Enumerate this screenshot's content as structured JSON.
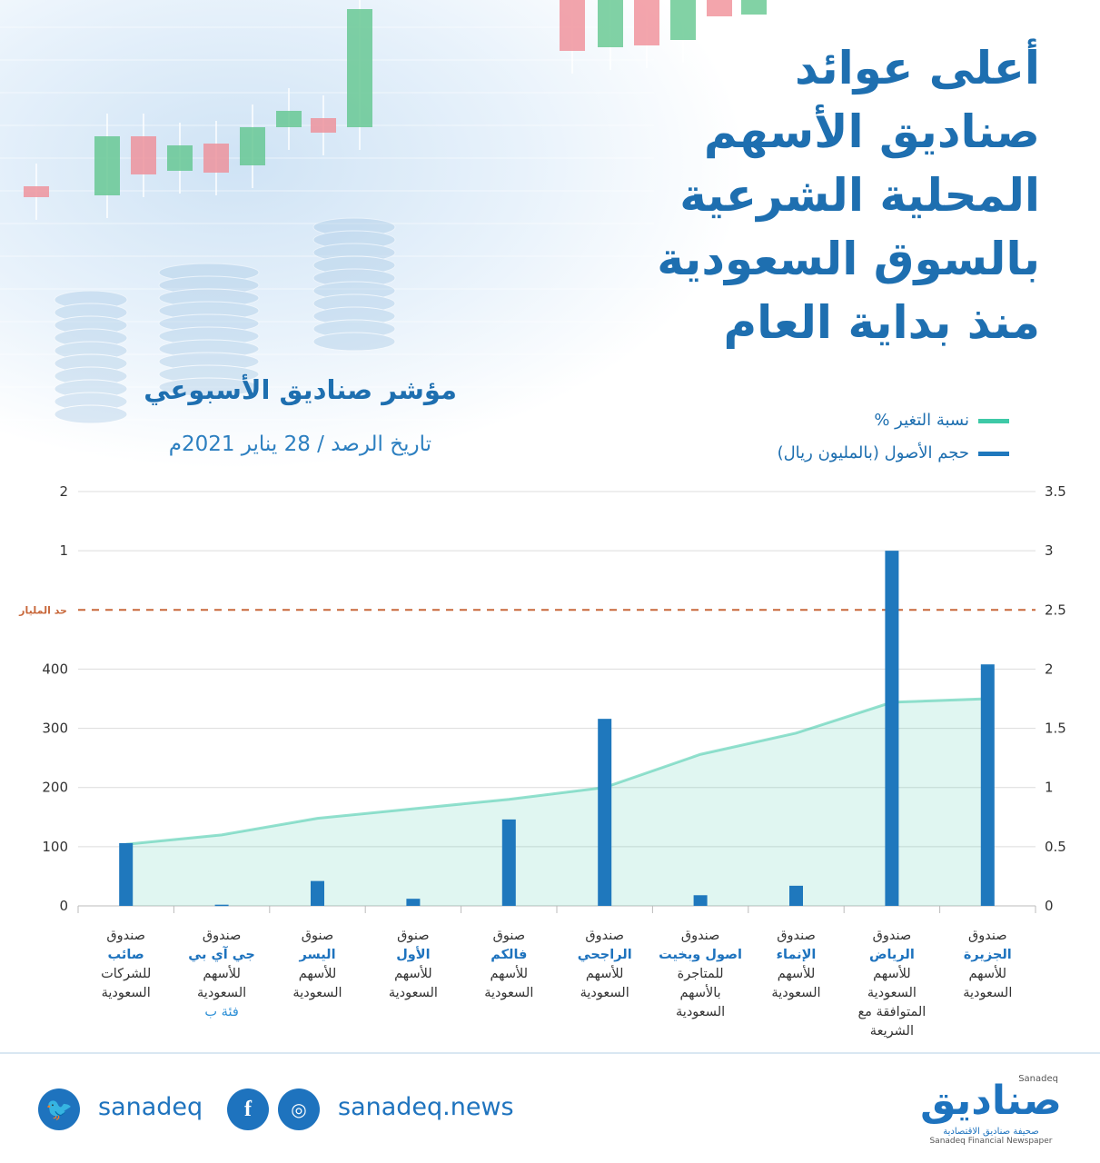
{
  "header": {
    "title_lines": [
      "أعلى عوائد",
      "صناديق الأسهم",
      "المحلية الشرعية",
      "بالسوق السعودية",
      "منذ بداية العام"
    ],
    "chart_title": "مؤشر صناديق الأسبوعي",
    "chart_date": "تاريخ الرصد / 28 يناير 2021م"
  },
  "legend": {
    "line_label": "نسبة التغير %",
    "bar_label": "حجم الأصول (بالمليون ريال)",
    "line_color": "#3ec9a7",
    "bar_color": "#1f78bd"
  },
  "chart_data": {
    "type": "bar",
    "left_axis_ticks": [
      "0",
      "100",
      "200",
      "300",
      "400",
      "",
      "1",
      "2"
    ],
    "right_axis_ticks": [
      "0",
      "0.5",
      "1",
      "1.5",
      "2",
      "2.5",
      "3",
      "3.5"
    ],
    "reference_label": "حد المليار",
    "categories": [
      {
        "prefix": "صندوق",
        "name": "صائب",
        "suffix": [
          "للشركات",
          "السعودية"
        ]
      },
      {
        "prefix": "صندوق",
        "name": "جي آي بي",
        "suffix": [
          "للأسهم",
          "السعودية"
        ],
        "extra": "فئة ب"
      },
      {
        "prefix": "صنوق",
        "name": "اليسر",
        "suffix": [
          "للأسهم",
          "السعودية"
        ]
      },
      {
        "prefix": "صنوق",
        "name": "الأول",
        "suffix": [
          "للأسهم",
          "السعودية"
        ]
      },
      {
        "prefix": "صنوق",
        "name": "فالكم",
        "suffix": [
          "للأسهم",
          "السعودية"
        ]
      },
      {
        "prefix": "صندوق",
        "name": "الراجحي",
        "suffix": [
          "للأسهم",
          "السعودية"
        ]
      },
      {
        "prefix": "صندوق",
        "name": "اصول وبخيت",
        "suffix": [
          "للمتاجرة",
          "بالأسهم",
          "السعودية"
        ]
      },
      {
        "prefix": "صندوق",
        "name": "الإنماء",
        "suffix": [
          "للأسهم",
          "السعودية"
        ]
      },
      {
        "prefix": "صندوق",
        "name": "الرياض",
        "suffix": [
          "للأسهم",
          "السعودية",
          "المتوافقة مع",
          "الشريعة"
        ]
      },
      {
        "prefix": "صندوق",
        "name": "الجزيرة",
        "suffix": [
          "للأسهم",
          "السعودية"
        ]
      }
    ],
    "series": [
      {
        "name": "حجم الأصول (بالمليون ريال)",
        "type": "bar",
        "axis_scale": [
          0,
          3.5
        ],
        "values": [
          0.53,
          0.01,
          0.21,
          0.06,
          0.73,
          1.58,
          0.09,
          0.17,
          3.0,
          2.04
        ]
      },
      {
        "name": "نسبة التغير %",
        "type": "area",
        "axis_scale": [
          0,
          3.5
        ],
        "values": [
          0.52,
          0.6,
          0.74,
          0.82,
          0.9,
          1.0,
          1.28,
          1.46,
          1.72,
          1.75
        ]
      }
    ],
    "reference_value": 2.5
  },
  "footer": {
    "handle": "sanadeq",
    "site": "sanadeq.news",
    "brand_name": "صناديق",
    "brand_latin": "Sanadeq",
    "brand_tagline_ar": "صحيفة صناديق الاقتصادية",
    "brand_tagline_en": "Sanadeq Financial Newspaper"
  }
}
